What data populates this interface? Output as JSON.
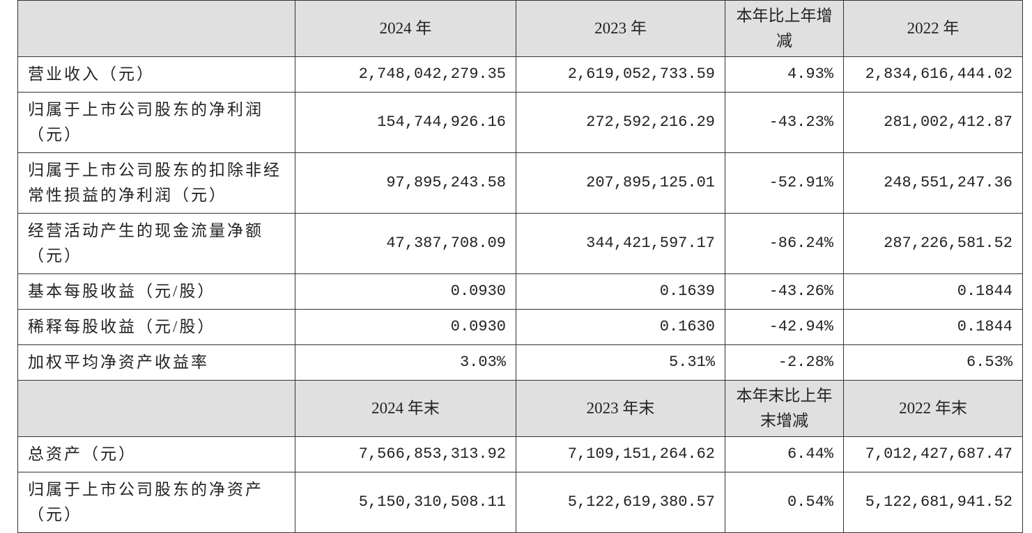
{
  "sections": [
    {
      "header": [
        "2024 年",
        "2023 年",
        "本年比上年增减",
        "2022 年"
      ],
      "rows": [
        [
          "营业收入（元）",
          "2,748,042,279.35",
          "2,619,052,733.59",
          "4.93%",
          "2,834,616,444.02"
        ],
        [
          "归属于上市公司股东的净利润（元）",
          "154,744,926.16",
          "272,592,216.29",
          "-43.23%",
          "281,002,412.87"
        ],
        [
          "归属于上市公司股东的扣除非经常性损益的净利润（元）",
          "97,895,243.58",
          "207,895,125.01",
          "-52.91%",
          "248,551,247.36"
        ],
        [
          "经营活动产生的现金流量净额（元）",
          "47,387,708.09",
          "344,421,597.17",
          "-86.24%",
          "287,226,581.52"
        ],
        [
          "基本每股收益（元/股）",
          "0.0930",
          "0.1639",
          "-43.26%",
          "0.1844"
        ],
        [
          "稀释每股收益（元/股）",
          "0.0930",
          "0.1630",
          "-42.94%",
          "0.1844"
        ],
        [
          "加权平均净资产收益率",
          "3.03%",
          "5.31%",
          "-2.28%",
          "6.53%"
        ]
      ]
    },
    {
      "header": [
        "2024 年末",
        "2023 年末",
        "本年末比上年末增减",
        "2022 年末"
      ],
      "rows": [
        [
          "总资产（元）",
          "7,566,853,313.92",
          "7,109,151,264.62",
          "6.44%",
          "7,012,427,687.47"
        ],
        [
          "归属于上市公司股东的净资产（元）",
          "5,150,310,508.11",
          "5,122,619,380.57",
          "0.54%",
          "5,122,681,941.52"
        ]
      ]
    }
  ]
}
